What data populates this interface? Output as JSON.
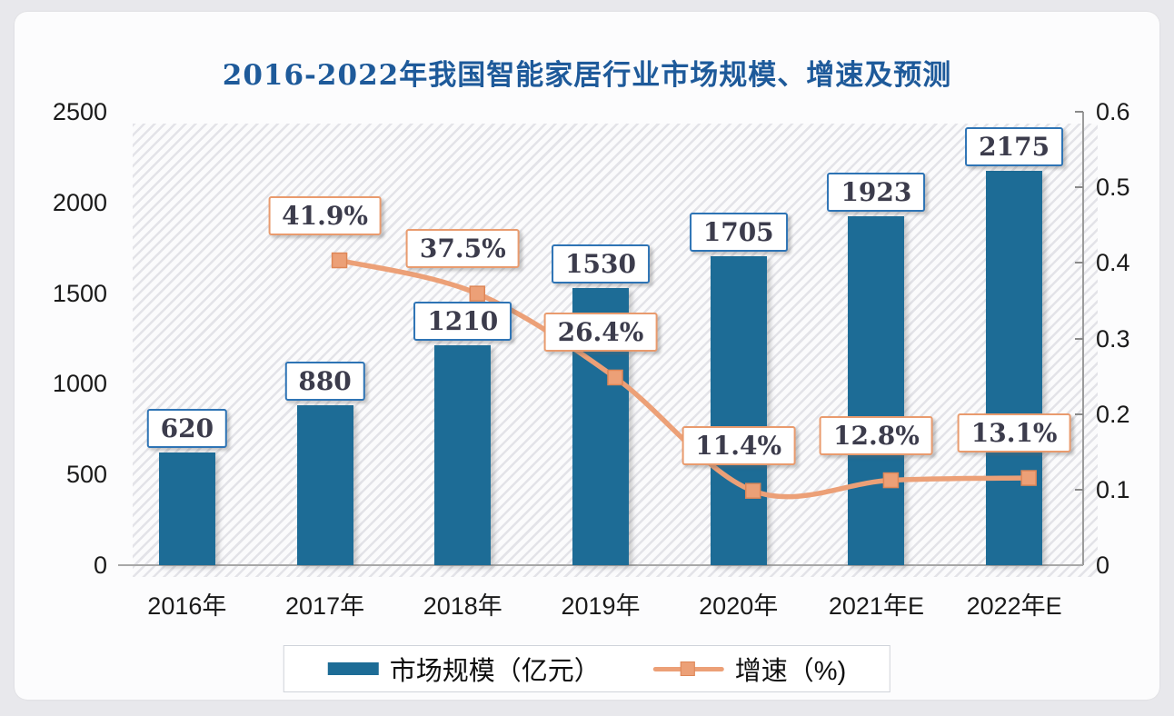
{
  "chart_data": {
    "type": "combo",
    "title": "2016-2022年我国智能家居行业市场规模、增速及预测",
    "categories": [
      "2016年",
      "2017年",
      "2018年",
      "2019年",
      "2020年",
      "2021年E",
      "2022年E"
    ],
    "series": [
      {
        "name": "市场规模（亿元）",
        "type": "bar",
        "axis": "left",
        "values": [
          620,
          880,
          1210,
          1530,
          1705,
          1923,
          2175
        ],
        "labels": [
          "620",
          "880",
          "1210",
          "1530",
          "1705",
          "1923",
          "2175"
        ]
      },
      {
        "name": "增速（%)",
        "type": "line",
        "axis": "right",
        "start_index": 1,
        "values": [
          0.419,
          0.375,
          0.264,
          0.114,
          0.128,
          0.131
        ],
        "labels": [
          "41.9%",
          "37.5%",
          "26.4%",
          "11.4%",
          "12.8%",
          "13.1%"
        ]
      }
    ],
    "left_axis": {
      "min": 0,
      "max": 2500,
      "ticks": [
        {
          "value": 0,
          "label": "0"
        },
        {
          "value": 500,
          "label": "500"
        },
        {
          "value": 1000,
          "label": "1000"
        },
        {
          "value": 1500,
          "label": "1500"
        },
        {
          "value": 2000,
          "label": "2000"
        },
        {
          "value": 2500,
          "label": "2500"
        }
      ]
    },
    "right_axis": {
      "min": 0,
      "max": 0.6,
      "ticks": [
        {
          "value": 0,
          "label": "0"
        },
        {
          "value": 0.1,
          "label": "0.1"
        },
        {
          "value": 0.2,
          "label": "0.2"
        },
        {
          "value": 0.3,
          "label": "0.3"
        },
        {
          "value": 0.4,
          "label": "0.4"
        },
        {
          "value": 0.5,
          "label": "0.5"
        },
        {
          "value": 0.6,
          "label": "0.6"
        }
      ]
    },
    "legend_position": "bottom",
    "grid": false,
    "plot_background": "diagonal-hatch"
  },
  "colors": {
    "bar": "#1d6c96",
    "line": "#eca077",
    "marker_fill": "#eca077",
    "marker_border": "#de8657",
    "bar_label_border": "#2e74b5",
    "pct_label_border": "#e99b6e",
    "title": "#1e5a9a",
    "axis_text": "#1a1a1a",
    "label_text": "#3c3c4c"
  }
}
